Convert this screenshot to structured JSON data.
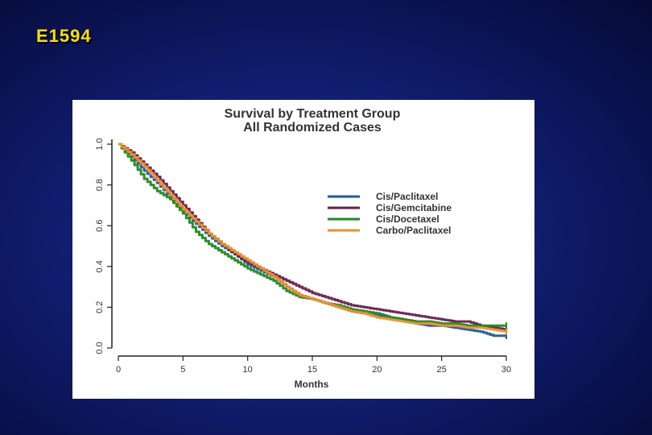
{
  "slide": {
    "title": "E1594"
  },
  "colors": {
    "background": "#13227a",
    "title_text": "#f6e200",
    "panel": "#ffffff",
    "axis": "#222222"
  },
  "chart_data": {
    "type": "line",
    "title": "Survival by Treatment Group",
    "subtitle": "All Randomized Cases",
    "xlabel": "Months",
    "ylabel": "",
    "xlim": [
      0,
      30
    ],
    "ylim": [
      0,
      1.0
    ],
    "xticks": [
      0,
      5,
      10,
      15,
      20,
      25,
      30
    ],
    "yticks": [
      0.0,
      0.2,
      0.4,
      0.6,
      0.8,
      1.0
    ],
    "ytick_labels": [
      "0.0",
      "0.2",
      "0.4",
      "0.6",
      "0.8",
      "1.0"
    ],
    "grid": false,
    "legend_position": "top-right",
    "series": [
      {
        "name": "Cis/Paclitaxel",
        "color": "#1e5aa0",
        "x": [
          0,
          1,
          2,
          3,
          4,
          5,
          6,
          7,
          8,
          9,
          10,
          11,
          12,
          13,
          14,
          15,
          16,
          17,
          18,
          19,
          20,
          21,
          22,
          23,
          24,
          25,
          26,
          27,
          28,
          29,
          30
        ],
        "y": [
          1.0,
          0.94,
          0.87,
          0.81,
          0.74,
          0.67,
          0.61,
          0.55,
          0.5,
          0.46,
          0.41,
          0.38,
          0.35,
          0.3,
          0.26,
          0.24,
          0.22,
          0.2,
          0.18,
          0.17,
          0.16,
          0.15,
          0.14,
          0.12,
          0.11,
          0.11,
          0.1,
          0.09,
          0.08,
          0.06,
          0.06
        ]
      },
      {
        "name": "Cis/Gemcitabine",
        "color": "#6a1e4e",
        "x": [
          0,
          1,
          2,
          3,
          4,
          5,
          6,
          7,
          8,
          9,
          10,
          11,
          12,
          13,
          14,
          15,
          16,
          17,
          18,
          19,
          20,
          21,
          22,
          23,
          24,
          25,
          26,
          27,
          28,
          29,
          30
        ],
        "y": [
          1.0,
          0.96,
          0.9,
          0.84,
          0.77,
          0.7,
          0.63,
          0.56,
          0.51,
          0.46,
          0.42,
          0.39,
          0.36,
          0.33,
          0.3,
          0.27,
          0.25,
          0.23,
          0.21,
          0.2,
          0.19,
          0.18,
          0.17,
          0.16,
          0.15,
          0.14,
          0.13,
          0.13,
          0.11,
          0.1,
          0.09
        ]
      },
      {
        "name": "Cis/Docetaxel",
        "color": "#1f8a1f",
        "x": [
          0,
          1,
          2,
          3,
          4,
          5,
          6,
          7,
          8,
          9,
          10,
          11,
          12,
          13,
          14,
          15,
          16,
          17,
          18,
          19,
          20,
          21,
          22,
          23,
          24,
          25,
          26,
          27,
          28,
          29,
          30
        ],
        "y": [
          1.0,
          0.92,
          0.83,
          0.77,
          0.73,
          0.66,
          0.57,
          0.51,
          0.47,
          0.43,
          0.39,
          0.36,
          0.33,
          0.28,
          0.25,
          0.24,
          0.22,
          0.21,
          0.19,
          0.18,
          0.17,
          0.15,
          0.14,
          0.13,
          0.13,
          0.12,
          0.12,
          0.11,
          0.11,
          0.11,
          0.11
        ]
      },
      {
        "name": "Carbo/Paclitaxel",
        "color": "#f0902a",
        "x": [
          0,
          1,
          2,
          3,
          4,
          5,
          6,
          7,
          8,
          9,
          10,
          11,
          12,
          13,
          14,
          15,
          16,
          17,
          18,
          19,
          20,
          21,
          22,
          23,
          24,
          25,
          26,
          27,
          28,
          29,
          30
        ],
        "y": [
          1.0,
          0.95,
          0.89,
          0.82,
          0.75,
          0.68,
          0.62,
          0.56,
          0.51,
          0.47,
          0.43,
          0.39,
          0.35,
          0.3,
          0.26,
          0.24,
          0.22,
          0.2,
          0.18,
          0.17,
          0.15,
          0.14,
          0.13,
          0.12,
          0.12,
          0.11,
          0.11,
          0.1,
          0.1,
          0.09,
          0.08
        ]
      }
    ]
  }
}
